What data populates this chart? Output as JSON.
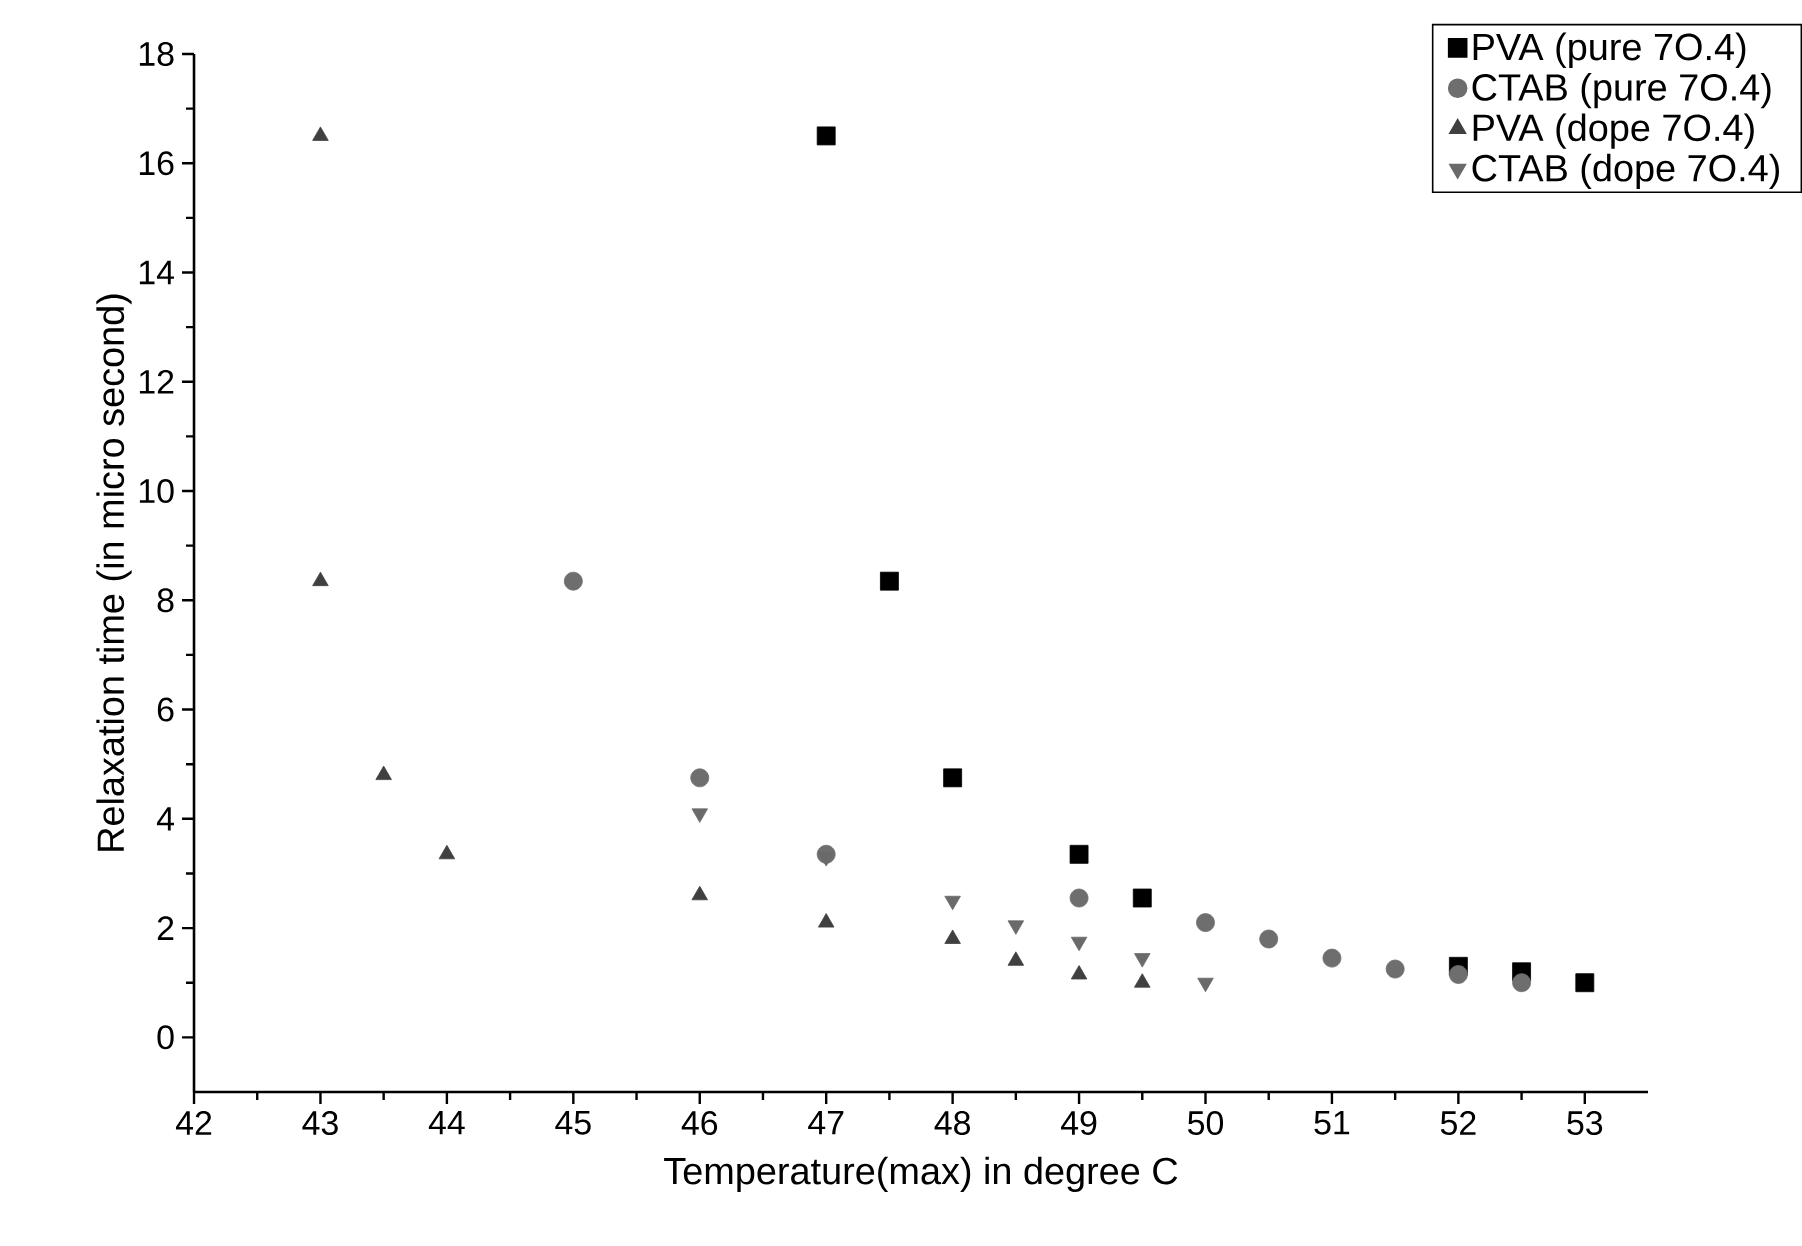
{
  "chart_data": {
    "type": "scatter",
    "xlabel": "Temperature(max) in degree C",
    "ylabel": "Relaxation time (in micro second)",
    "xlim": [
      42,
      53.5
    ],
    "ylim": [
      -1,
      18
    ],
    "xticks": [
      42,
      43,
      44,
      45,
      46,
      47,
      48,
      49,
      50,
      51,
      52,
      53
    ],
    "yticks": [
      0,
      2,
      4,
      6,
      8,
      10,
      12,
      14,
      16,
      18
    ],
    "legend": "top right",
    "grid": false,
    "series": [
      {
        "name": "PVA (pure 7O.4)",
        "color": "#000000",
        "marker": "square",
        "x": [
          47,
          47.5,
          48,
          49,
          49.5,
          50,
          50.5,
          51,
          52,
          52.5,
          53
        ],
        "values": [
          16.5,
          8.35,
          4.75,
          3.35,
          2.55,
          null,
          null,
          null,
          1.3,
          1.2,
          1.0
        ]
      },
      {
        "name": "CTAB (pure 7O.4)",
        "color": "#6e6e6e",
        "marker": "circle",
        "x": [
          45,
          46,
          47,
          49,
          50,
          50.5,
          51,
          51.5,
          52,
          52.5
        ],
        "values": [
          8.35,
          4.75,
          3.35,
          2.55,
          2.1,
          1.8,
          1.45,
          1.25,
          1.15,
          1.0
        ]
      },
      {
        "name": "PVA (dope 7O.4)",
        "color": "#404040",
        "marker": "triangle",
        "x": [
          43,
          43,
          43.5,
          44,
          46,
          47,
          48,
          48.5,
          49,
          49.5
        ],
        "values": [
          16.5,
          8.35,
          4.8,
          3.35,
          2.6,
          2.1,
          1.8,
          1.4,
          1.15,
          1.0
        ]
      },
      {
        "name": "CTAB (dope 7O.4)",
        "color": "#6a6a6a",
        "marker": "triangle_down",
        "x": [
          46,
          47,
          48,
          48.5,
          49,
          49.5,
          50
        ],
        "values": [
          4.1,
          3.3,
          2.5,
          2.05,
          1.75,
          1.45,
          1.0
        ]
      }
    ]
  }
}
